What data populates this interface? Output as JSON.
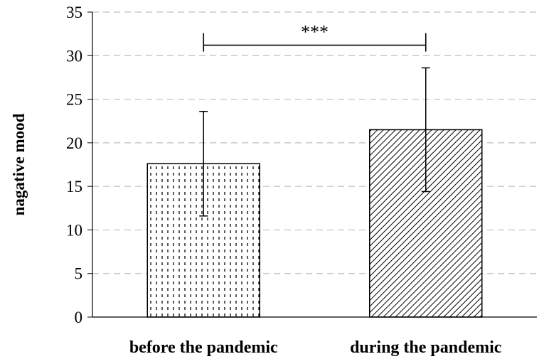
{
  "chart_data": {
    "type": "bar",
    "categories": [
      "before the pandemic",
      "during the pandemic"
    ],
    "values": [
      17.6,
      21.5
    ],
    "error": [
      6.0,
      7.1
    ],
    "patterns": [
      "dotted",
      "diagonal-hatch"
    ],
    "ylabel": "nagative mood",
    "xlabel": "",
    "ylim": [
      0,
      35
    ],
    "yticks": [
      0,
      5,
      10,
      15,
      20,
      25,
      30,
      35
    ],
    "grid": true,
    "grid_style": "dashed",
    "significance": {
      "between": [
        0,
        1
      ],
      "label": "***"
    },
    "colors": {
      "bar_edge": "#000000",
      "grid": "#bfbfbf",
      "axis": "#000000"
    }
  }
}
